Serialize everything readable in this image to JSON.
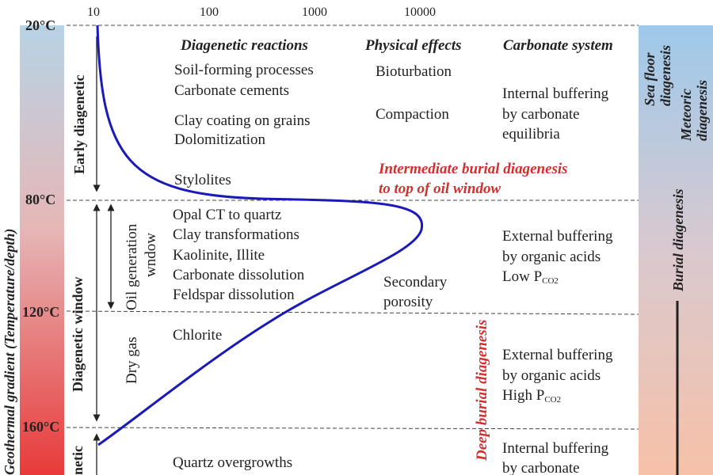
{
  "colors": {
    "curve": "#1a1ab8",
    "highlight": "#d32f2f",
    "bar_top": "#b7d3e6",
    "bar_bottom": "#e83a3a",
    "right_bar_top": "#9ec9ea",
    "right_bar_bottom": "#f7c1a8"
  },
  "axis": {
    "left_label": "Geothermal gradient (Temperature/depth)",
    "scale_ticks": [
      "10",
      "100",
      "1000",
      "10000"
    ],
    "temperatures": [
      "20°C",
      "80°C",
      "120°C",
      "160°C"
    ]
  },
  "headers": {
    "reactions": "Diagenetic reactions",
    "physical": "Physical effects",
    "carbonate": "Carbonate system"
  },
  "zones": {
    "early": "Early diagenetic",
    "window": "Diagenetic window",
    "late_partial": "netic",
    "oil": [
      "Oil generation",
      "wndow"
    ],
    "gas": "Dry gas"
  },
  "reactions": {
    "early": [
      "Soil-forming processes",
      "Carbonate cements",
      "Clay coating on grains",
      "Dolomitization",
      "Stylolites"
    ],
    "window": [
      "Opal CT to quartz",
      "Clay transformations",
      "Kaolinite, Illite",
      "Carbonate dissolution",
      "Feldspar dissolution"
    ],
    "gas": "Chlorite",
    "late": "Quartz overgrowths"
  },
  "physical": {
    "bioturbation": "Bioturbation",
    "compaction": "Compaction",
    "secondary": [
      "Secondary",
      "porosity"
    ]
  },
  "carbonate": {
    "internal_1": [
      "Internal buffering",
      "by carbonate",
      "equilibria"
    ],
    "external_low": [
      "External buffering",
      "by organic acids",
      "Low P",
      "CO2"
    ],
    "external_high": [
      "External buffering",
      "by organic acids",
      "High P",
      "CO2"
    ],
    "internal_2": [
      "Internal buffering",
      "by carbonate"
    ]
  },
  "annotations": {
    "intermediate": [
      "Intermediate burial diagenesis",
      "to top of oil window"
    ],
    "deep": "Deep burial diagenesis"
  },
  "right_labels": {
    "sea_floor": [
      "Sea floor",
      "diagenesis"
    ],
    "meteoric": [
      "Meteoric",
      "diagenesis"
    ],
    "burial": "Burial diagenesis"
  }
}
